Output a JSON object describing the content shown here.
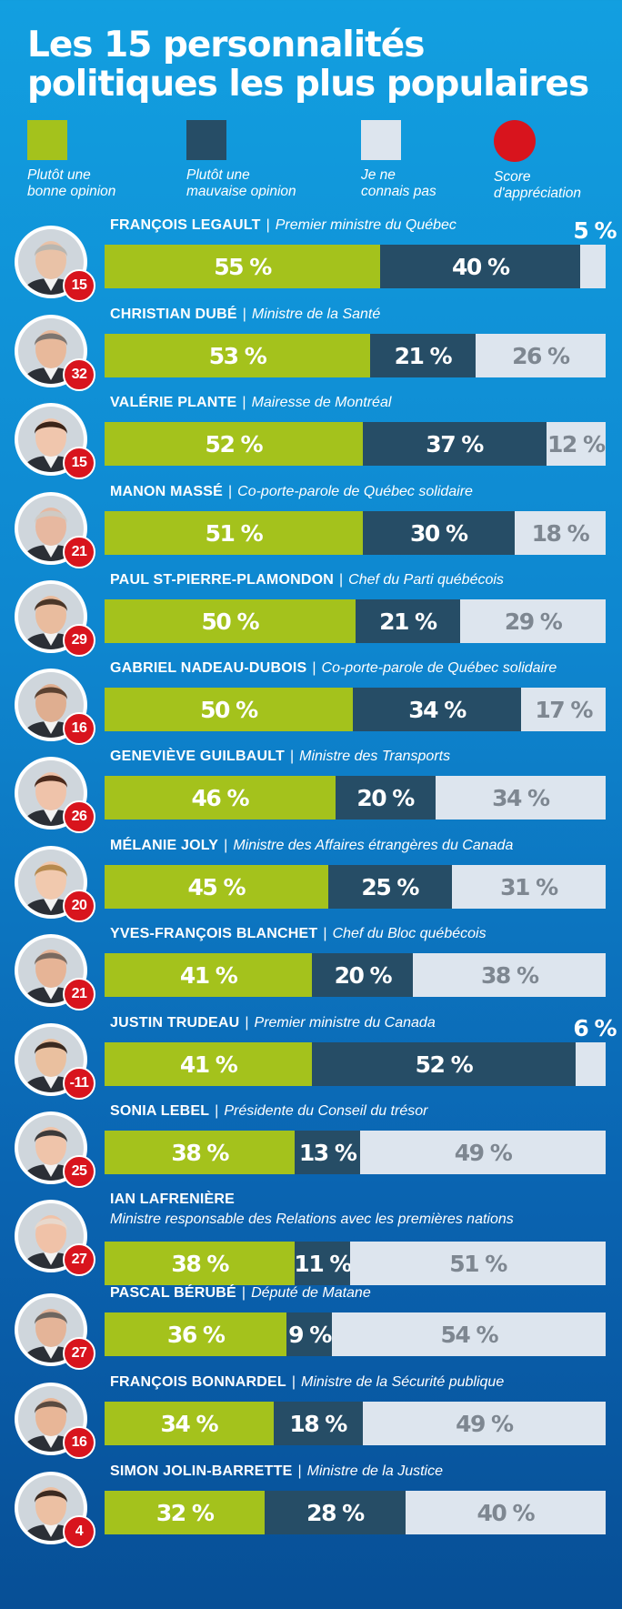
{
  "title_line1": "Les 15 personnalités",
  "title_line2": "politiques les plus populaires",
  "legend": {
    "good": {
      "label1": "Plutôt une",
      "label2": "bonne opinion",
      "color": "#a4c21c"
    },
    "bad": {
      "label1": "Plutôt une",
      "label2": "mauvaise opinion",
      "color": "#264d66"
    },
    "unknown": {
      "label1": "Je ne",
      "label2": "connais pas",
      "color": "#dde5ee"
    },
    "score": {
      "label1": "Score",
      "label2": "d'appréciation",
      "color": "#d8141d"
    }
  },
  "chart_data": {
    "type": "bar",
    "stacked": true,
    "orientation": "horizontal",
    "series_names": [
      "Plutôt une bonne opinion",
      "Plutôt une mauvaise opinion",
      "Je ne connais pas"
    ],
    "people": [
      {
        "name": "FRANÇOIS LEGAULT",
        "role": "Premier ministre du Québec",
        "score": "15",
        "good": 55,
        "bad": 40,
        "unknown": 5,
        "good_label": "55 %",
        "bad_label": "40 %",
        "unknown_label": "5 %",
        "outside": true,
        "skin": "#e9c2a7",
        "hair": "#b9b6b0"
      },
      {
        "name": "CHRISTIAN DUBÉ",
        "role": "Ministre de la Santé",
        "score": "32",
        "good": 53,
        "bad": 21,
        "unknown": 26,
        "good_label": "53 %",
        "bad_label": "21 %",
        "unknown_label": "26 %",
        "skin": "#e8b99b",
        "hair": "#7d7570"
      },
      {
        "name": "VALÉRIE PLANTE",
        "role": "Mairesse de Montréal",
        "score": "15",
        "good": 52,
        "bad": 37,
        "unknown": 12,
        "good_label": "52 %",
        "bad_label": "37 %",
        "unknown_label": "12 %",
        "skin": "#f0c6ad",
        "hair": "#3b2418"
      },
      {
        "name": "MANON MASSÉ",
        "role": "Co-porte-parole de Québec solidaire",
        "score": "21",
        "good": 51,
        "bad": 30,
        "unknown": 18,
        "good_label": "51 %",
        "bad_label": "30 %",
        "unknown_label": "18 %",
        "skin": "#e7b8a0",
        "hair": "#cfcac4"
      },
      {
        "name": "PAUL ST-PIERRE-PLAMONDON",
        "role": "Chef du Parti québécois",
        "score": "29",
        "good": 50,
        "bad": 21,
        "unknown": 29,
        "good_label": "50 %",
        "bad_label": "21 %",
        "unknown_label": "29 %",
        "skin": "#e9bc9e",
        "hair": "#4a3628"
      },
      {
        "name": "GABRIEL NADEAU-DUBOIS",
        "role": "Co-porte-parole de Québec solidaire",
        "score": "16",
        "good": 50,
        "bad": 34,
        "unknown": 17,
        "good_label": "50 %",
        "bad_label": "34 %",
        "unknown_label": "17 %",
        "skin": "#dfae90",
        "hair": "#5b4130"
      },
      {
        "name": "GENEVIÈVE GUILBAULT",
        "role": "Ministre des Transports",
        "score": "26",
        "good": 46,
        "bad": 20,
        "unknown": 34,
        "good_label": "46 %",
        "bad_label": "20 %",
        "unknown_label": "34 %",
        "skin": "#efc3aa",
        "hair": "#4b2a1c"
      },
      {
        "name": "MÉLANIE JOLY",
        "role": "Ministre des Affaires étrangères du Canada",
        "score": "20",
        "good": 45,
        "bad": 25,
        "unknown": 31,
        "good_label": "45 %",
        "bad_label": "25 %",
        "unknown_label": "31 %",
        "skin": "#f1c9ae",
        "hair": "#b78a4e"
      },
      {
        "name": "YVES-FRANÇOIS BLANCHET",
        "role": "Chef du Bloc québécois",
        "score": "21",
        "good": 41,
        "bad": 20,
        "unknown": 38,
        "good_label": "41 %",
        "bad_label": "20 %",
        "unknown_label": "38 %",
        "skin": "#e6b496",
        "hair": "#7a6a60"
      },
      {
        "name": "JUSTIN TRUDEAU",
        "role": "Premier ministre du Canada",
        "score": "-11",
        "good": 41,
        "bad": 52,
        "unknown": 6,
        "good_label": "41 %",
        "bad_label": "52 %",
        "unknown_label": "6 %",
        "outside": true,
        "skin": "#eac09f",
        "hair": "#3a2a20"
      },
      {
        "name": "SONIA LEBEL",
        "role": "Présidente du Conseil du trésor",
        "score": "25",
        "good": 38,
        "bad": 13,
        "unknown": 49,
        "good_label": "38 %",
        "bad_label": "13 %",
        "unknown_label": "49 %",
        "skin": "#efc4aa",
        "hair": "#3c3a3a"
      },
      {
        "name": "IAN LAFRENIÈRE",
        "role": "",
        "role2": "Ministre responsable des Relations avec les premières nations",
        "score": "27",
        "good": 38,
        "bad": 11,
        "unknown": 51,
        "good_label": "38 %",
        "bad_label": "11 %",
        "unknown_label": "51 %",
        "skin": "#f0c2a8",
        "hair": "#e8d8cc"
      },
      {
        "name": "PASCAL BÉRUBÉ",
        "role": "Député de Matane",
        "score": "27",
        "good": 36,
        "bad": 9,
        "unknown": 54,
        "good_label": "36 %",
        "bad_label": "9 %",
        "unknown_label": "54 %",
        "skin": "#e4b498",
        "hair": "#6e6660"
      },
      {
        "name": "FRANÇOIS BONNARDEL",
        "role": "Ministre de la Sécurité publique",
        "score": "16",
        "good": 34,
        "bad": 18,
        "unknown": 49,
        "good_label": "34 %",
        "bad_label": "18 %",
        "unknown_label": "49 %",
        "skin": "#e8b697",
        "hair": "#5a4a40"
      },
      {
        "name": "SIMON JOLIN-BARRETTE",
        "role": "Ministre de la Justice",
        "score": "4",
        "good": 32,
        "bad": 28,
        "unknown": 40,
        "good_label": "32 %",
        "bad_label": "28 %",
        "unknown_label": "40 %",
        "skin": "#ecc0a3",
        "hair": "#3c2a20"
      }
    ]
  }
}
